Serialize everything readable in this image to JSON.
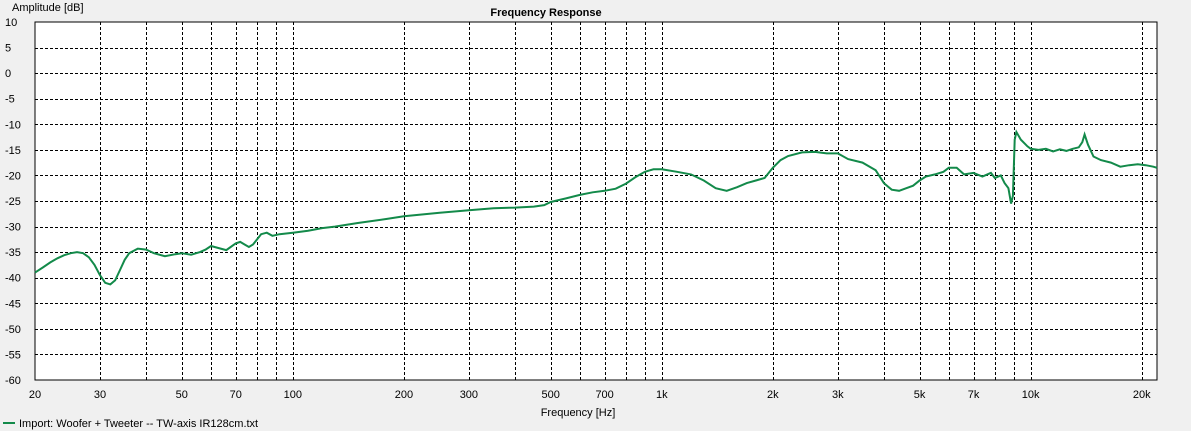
{
  "chart_data": {
    "type": "line",
    "title": "Frequency Response",
    "xlabel": "Frequency [Hz]",
    "ylabel": "Amplitude [dB]",
    "x_scale": "log",
    "xlim": [
      20,
      22000
    ],
    "ylim": [
      -60,
      10
    ],
    "grid": true,
    "legend_position": "bottom-left",
    "x_ticks": [
      20,
      30,
      50,
      70,
      100,
      200,
      300,
      500,
      700,
      1000,
      2000,
      3000,
      5000,
      7000,
      10000,
      20000
    ],
    "x_tick_labels": [
      "20",
      "30",
      "50",
      "70",
      "100",
      "200",
      "300",
      "500",
      "700",
      "1k",
      "2k",
      "3k",
      "5k",
      "7k",
      "10k",
      "20k"
    ],
    "y_ticks": [
      10,
      5,
      0,
      -5,
      -10,
      -15,
      -20,
      -25,
      -30,
      -35,
      -40,
      -45,
      -50,
      -55,
      -60
    ],
    "y_tick_labels": [
      "10",
      "5",
      "0",
      "-5",
      "-10",
      "-15",
      "-20",
      "-25",
      "-30",
      "-35",
      "-40",
      "-45",
      "-50",
      "-55",
      "-60"
    ],
    "series": [
      {
        "name": "Import: Woofer + Tweeter -- TW-axis IR128cm.txt",
        "color": "#138a4a",
        "points": [
          [
            20,
            -39.0
          ],
          [
            21,
            -38.0
          ],
          [
            22,
            -37.0
          ],
          [
            23,
            -36.2
          ],
          [
            24,
            -35.6
          ],
          [
            25,
            -35.2
          ],
          [
            26,
            -35.0
          ],
          [
            27,
            -35.2
          ],
          [
            28,
            -36.0
          ],
          [
            29,
            -37.5
          ],
          [
            30,
            -39.5
          ],
          [
            31,
            -41.0
          ],
          [
            32,
            -41.3
          ],
          [
            33,
            -40.5
          ],
          [
            34,
            -38.5
          ],
          [
            35,
            -36.5
          ],
          [
            36,
            -35.2
          ],
          [
            38,
            -34.3
          ],
          [
            40,
            -34.5
          ],
          [
            42,
            -35.2
          ],
          [
            45,
            -35.8
          ],
          [
            48,
            -35.4
          ],
          [
            50,
            -35.2
          ],
          [
            53,
            -35.5
          ],
          [
            56,
            -35.0
          ],
          [
            58,
            -34.5
          ],
          [
            60,
            -33.8
          ],
          [
            63,
            -34.2
          ],
          [
            66,
            -34.6
          ],
          [
            70,
            -33.3
          ],
          [
            72,
            -33.0
          ],
          [
            74,
            -33.5
          ],
          [
            76,
            -34.0
          ],
          [
            78,
            -33.5
          ],
          [
            82,
            -31.5
          ],
          [
            85,
            -31.2
          ],
          [
            88,
            -31.8
          ],
          [
            92,
            -31.5
          ],
          [
            100,
            -31.2
          ],
          [
            110,
            -30.8
          ],
          [
            120,
            -30.3
          ],
          [
            130,
            -30.0
          ],
          [
            150,
            -29.3
          ],
          [
            180,
            -28.5
          ],
          [
            200,
            -28.0
          ],
          [
            250,
            -27.3
          ],
          [
            300,
            -26.8
          ],
          [
            350,
            -26.4
          ],
          [
            400,
            -26.3
          ],
          [
            450,
            -26.1
          ],
          [
            480,
            -25.8
          ],
          [
            500,
            -25.2
          ],
          [
            550,
            -24.5
          ],
          [
            600,
            -23.8
          ],
          [
            650,
            -23.3
          ],
          [
            700,
            -23.0
          ],
          [
            750,
            -22.6
          ],
          [
            800,
            -21.6
          ],
          [
            850,
            -20.3
          ],
          [
            900,
            -19.3
          ],
          [
            950,
            -18.8
          ],
          [
            1000,
            -18.8
          ],
          [
            1100,
            -19.3
          ],
          [
            1200,
            -19.8
          ],
          [
            1300,
            -21.0
          ],
          [
            1400,
            -22.5
          ],
          [
            1500,
            -23.0
          ],
          [
            1600,
            -22.3
          ],
          [
            1700,
            -21.5
          ],
          [
            1800,
            -21.0
          ],
          [
            1900,
            -20.5
          ],
          [
            2000,
            -18.5
          ],
          [
            2100,
            -17.0
          ],
          [
            2200,
            -16.2
          ],
          [
            2400,
            -15.5
          ],
          [
            2600,
            -15.4
          ],
          [
            2800,
            -15.7
          ],
          [
            3000,
            -15.7
          ],
          [
            3200,
            -16.8
          ],
          [
            3500,
            -17.5
          ],
          [
            3800,
            -19.0
          ],
          [
            4000,
            -21.5
          ],
          [
            4200,
            -22.8
          ],
          [
            4400,
            -23.0
          ],
          [
            4600,
            -22.5
          ],
          [
            4800,
            -22.0
          ],
          [
            5000,
            -21.0
          ],
          [
            5200,
            -20.2
          ],
          [
            5500,
            -19.8
          ],
          [
            5800,
            -19.3
          ],
          [
            6000,
            -18.5
          ],
          [
            6300,
            -18.5
          ],
          [
            6600,
            -19.8
          ],
          [
            7000,
            -19.5
          ],
          [
            7400,
            -20.2
          ],
          [
            7800,
            -19.5
          ],
          [
            8000,
            -20.5
          ],
          [
            8300,
            -20.0
          ],
          [
            8500,
            -21.5
          ],
          [
            8700,
            -22.5
          ],
          [
            8850,
            -25.5
          ],
          [
            8950,
            -24.0
          ],
          [
            9050,
            -13.0
          ],
          [
            9150,
            -11.5
          ],
          [
            9400,
            -13.0
          ],
          [
            9800,
            -14.3
          ],
          [
            10000,
            -14.8
          ],
          [
            10500,
            -15.0
          ],
          [
            11000,
            -14.8
          ],
          [
            11500,
            -15.3
          ],
          [
            12000,
            -14.9
          ],
          [
            12500,
            -15.2
          ],
          [
            13000,
            -14.8
          ],
          [
            13500,
            -14.5
          ],
          [
            13800,
            -13.5
          ],
          [
            14000,
            -12.0
          ],
          [
            14300,
            -14.0
          ],
          [
            14800,
            -16.3
          ],
          [
            15500,
            -17.0
          ],
          [
            16500,
            -17.5
          ],
          [
            17500,
            -18.3
          ],
          [
            18500,
            -18.0
          ],
          [
            19500,
            -17.8
          ],
          [
            20500,
            -18.0
          ],
          [
            21500,
            -18.3
          ],
          [
            22000,
            -18.5
          ]
        ]
      }
    ]
  }
}
